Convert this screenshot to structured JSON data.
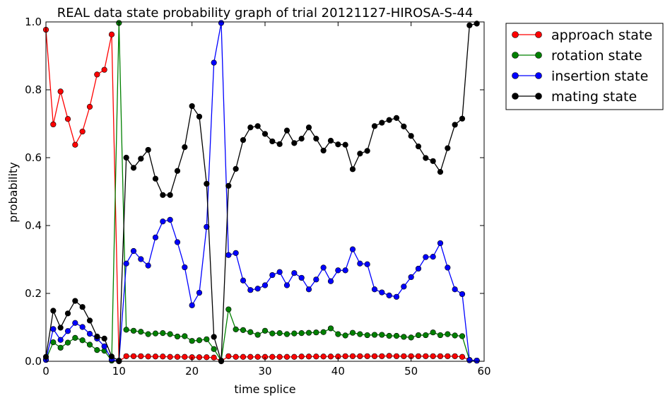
{
  "chart_data": {
    "type": "line",
    "title": "REAL data state probability graph of trial 20121127-HIROSA-S-44",
    "xlabel": "time splice",
    "ylabel": "probability",
    "xlim": [
      0,
      60
    ],
    "ylim": [
      0,
      1.0
    ],
    "xticks": [
      0,
      10,
      20,
      30,
      40,
      50,
      60
    ],
    "xtick_labels": [
      "0",
      "10",
      "20",
      "30",
      "40",
      "50",
      "60"
    ],
    "yticks": [
      0.0,
      0.2,
      0.4,
      0.6,
      0.8,
      1.0
    ],
    "ytick_labels": [
      "0.0",
      "0.2",
      "0.4",
      "0.6",
      "0.8",
      "1.0"
    ],
    "grid": false,
    "legend_position": "outside-right-top",
    "x": [
      0,
      1,
      2,
      3,
      4,
      5,
      6,
      7,
      8,
      9,
      10,
      11,
      12,
      13,
      14,
      15,
      16,
      17,
      18,
      19,
      20,
      21,
      22,
      23,
      24,
      25,
      26,
      27,
      28,
      29,
      30,
      31,
      32,
      33,
      34,
      35,
      36,
      37,
      38,
      39,
      40,
      41,
      42,
      43,
      44,
      45,
      46,
      47,
      48,
      49,
      50,
      51,
      52,
      53,
      54,
      55,
      56,
      57,
      58,
      59
    ],
    "series": [
      {
        "name": "approach state",
        "color": "#ff0000",
        "values": [
          0.977,
          0.698,
          0.795,
          0.714,
          0.638,
          0.677,
          0.75,
          0.845,
          0.859,
          0.963,
          0.0,
          0.015,
          0.015,
          0.015,
          0.014,
          0.014,
          0.014,
          0.013,
          0.013,
          0.013,
          0.012,
          0.012,
          0.012,
          0.011,
          0.0,
          0.015,
          0.013,
          0.013,
          0.013,
          0.013,
          0.013,
          0.013,
          0.013,
          0.013,
          0.013,
          0.014,
          0.014,
          0.014,
          0.014,
          0.014,
          0.014,
          0.015,
          0.015,
          0.015,
          0.015,
          0.015,
          0.015,
          0.016,
          0.015,
          0.015,
          0.015,
          0.015,
          0.015,
          0.015,
          0.015,
          0.015,
          0.015,
          0.013,
          0.004,
          0.002
        ]
      },
      {
        "name": "rotation state",
        "color": "#008000",
        "values": [
          0.005,
          0.056,
          0.04,
          0.055,
          0.069,
          0.062,
          0.049,
          0.033,
          0.031,
          0.002,
          0.997,
          0.093,
          0.09,
          0.087,
          0.08,
          0.082,
          0.083,
          0.08,
          0.073,
          0.074,
          0.06,
          0.062,
          0.065,
          0.036,
          0.002,
          0.153,
          0.094,
          0.092,
          0.086,
          0.078,
          0.09,
          0.082,
          0.083,
          0.08,
          0.082,
          0.083,
          0.084,
          0.085,
          0.086,
          0.097,
          0.08,
          0.076,
          0.084,
          0.08,
          0.077,
          0.078,
          0.078,
          0.075,
          0.075,
          0.072,
          0.07,
          0.077,
          0.077,
          0.085,
          0.077,
          0.08,
          0.076,
          0.074,
          0.003,
          0.002
        ]
      },
      {
        "name": "insertion state",
        "color": "#0000ff",
        "values": [
          0.004,
          0.095,
          0.063,
          0.089,
          0.113,
          0.101,
          0.081,
          0.067,
          0.044,
          0.005,
          0.001,
          0.288,
          0.325,
          0.301,
          0.282,
          0.365,
          0.412,
          0.417,
          0.351,
          0.277,
          0.165,
          0.202,
          0.396,
          0.88,
          0.997,
          0.313,
          0.319,
          0.238,
          0.21,
          0.214,
          0.224,
          0.254,
          0.263,
          0.224,
          0.26,
          0.246,
          0.212,
          0.241,
          0.276,
          0.236,
          0.268,
          0.268,
          0.33,
          0.288,
          0.286,
          0.212,
          0.203,
          0.194,
          0.19,
          0.22,
          0.248,
          0.273,
          0.307,
          0.308,
          0.348,
          0.276,
          0.212,
          0.198,
          0.003,
          0.002
        ]
      },
      {
        "name": "mating state",
        "color": "#000000",
        "values": [
          0.013,
          0.149,
          0.099,
          0.141,
          0.178,
          0.16,
          0.12,
          0.073,
          0.067,
          0.014,
          0.002,
          0.6,
          0.57,
          0.597,
          0.623,
          0.538,
          0.49,
          0.49,
          0.561,
          0.631,
          0.752,
          0.721,
          0.523,
          0.072,
          0.001,
          0.517,
          0.567,
          0.652,
          0.689,
          0.693,
          0.67,
          0.648,
          0.64,
          0.68,
          0.643,
          0.656,
          0.689,
          0.656,
          0.621,
          0.65,
          0.639,
          0.638,
          0.566,
          0.612,
          0.62,
          0.693,
          0.703,
          0.711,
          0.717,
          0.692,
          0.664,
          0.633,
          0.599,
          0.59,
          0.558,
          0.628,
          0.697,
          0.715,
          0.99,
          0.995
        ]
      }
    ]
  }
}
